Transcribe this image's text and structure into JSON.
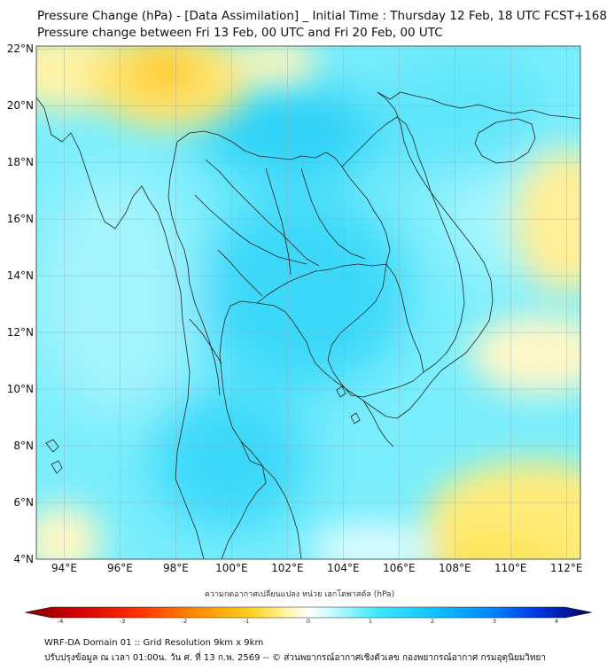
{
  "title_line1": "Pressure Change (hPa) - [Data Assimilation] _ Initial Time : Thursday 12 Feb, 18 UTC FCST+168",
  "title_line2": "Pressure change between Fri 13 Feb, 00 UTC and Fri 20 Feb, 00 UTC",
  "lat_labels": [
    "22°N",
    "20°N",
    "18°N",
    "16°N",
    "14°N",
    "12°N",
    "10°N",
    "8°N",
    "6°N",
    "4°N"
  ],
  "lon_labels": [
    "94°E",
    "96°E",
    "98°E",
    "100°E",
    "102°E",
    "104°E",
    "106°E",
    "108°E",
    "110°E",
    "112°E"
  ],
  "lat_values": [
    22,
    20,
    18,
    16,
    14,
    12,
    10,
    8,
    6,
    4
  ],
  "lon_values": [
    94,
    96,
    98,
    100,
    102,
    104,
    106,
    108,
    110,
    112
  ],
  "colorbar": {
    "title": "ความกดอากาศเปลี่ยนแปลง หน่วย เฮกโตพาสคัล (hPa)",
    "tick_labels": [
      "-4",
      "-3",
      "-2",
      "-1",
      "0",
      "1",
      "2",
      "3",
      "4"
    ],
    "tick_values": [
      -4,
      -3,
      -2,
      -1,
      0,
      1,
      2,
      3,
      4
    ],
    "min": -4,
    "max": 4,
    "colors": [
      "#7a0000",
      "#c80000",
      "#ff2000",
      "#ff7000",
      "#ffb400",
      "#ffe040",
      "#fff8a0",
      "#ffffff",
      "#c8fbff",
      "#40e8ff",
      "#10c8ff",
      "#0090ff",
      "#0040f0",
      "#0010b0",
      "#000060"
    ]
  },
  "footer_line1": "WRF-DA Domain 01 :: Grid Resolution 9km x 9km",
  "footer_line2": "ปรับปรุงข้อมูล ณ เวลา 01:00น. วัน ศ. ที่ 13 ก.พ. 2569 -- © ส่วนพยากรณ์อากาศเชิงตัวเลข กองพยากรณ์อากาศ กรมอุตุนิยมวิทยา",
  "colors": {
    "land_border": "#222222",
    "grid": "#9aa8b0"
  }
}
